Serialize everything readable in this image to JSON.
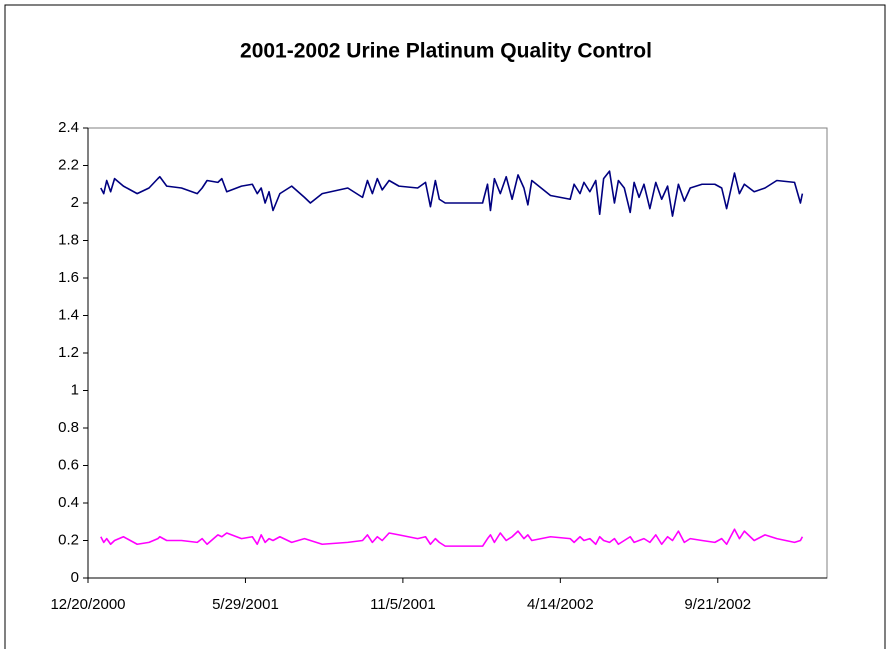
{
  "chart_data": {
    "type": "line",
    "title": "2001-2002 Urine Platinum Quality Control",
    "x": [
      "1/2/2001",
      "1/5/2001",
      "1/8/2001",
      "1/12/2001",
      "1/16/2001",
      "1/25/2001",
      "2/8/2001",
      "2/20/2001",
      "3/1/2001",
      "3/3/2001",
      "3/10/2001",
      "3/25/2001",
      "4/10/2001",
      "4/15/2001",
      "4/20/2001",
      "5/1/2001",
      "5/5/2001",
      "5/10/2001",
      "5/25/2001",
      "6/5/2001",
      "6/10/2001",
      "6/14/2001",
      "6/18/2001",
      "6/22/2001",
      "6/26/2001",
      "7/3/2001",
      "7/15/2001",
      "7/28/2001",
      "8/3/2001",
      "8/15/2001",
      "9/10/2001",
      "9/25/2001",
      "9/30/2001",
      "10/5/2001",
      "10/10/2001",
      "10/15/2001",
      "10/22/2001",
      "11/1/2001",
      "11/20/2001",
      "11/28/2001",
      "12/3/2001",
      "12/8/2001",
      "12/12/2001",
      "12/18/2001",
      "1/25/2002",
      "1/30/2002",
      "2/2/2002",
      "2/6/2002",
      "2/12/2002",
      "2/18/2002",
      "2/24/2002",
      "3/2/2002",
      "3/8/2002",
      "3/12/2002",
      "3/16/2002",
      "4/4/2002",
      "4/24/2002",
      "4/28/2002",
      "5/4/2002",
      "5/8/2002",
      "5/14/2002",
      "5/20/2002",
      "5/24/2002",
      "5/28/2002",
      "6/3/2002",
      "6/8/2002",
      "6/12/2002",
      "6/18/2002",
      "6/24/2002",
      "6/28/2002",
      "7/3/2002",
      "7/8/2002",
      "7/14/2002",
      "7/20/2002",
      "7/26/2002",
      "8/1/2002",
      "8/6/2002",
      "8/12/2002",
      "8/18/2002",
      "8/24/2002",
      "9/5/2002",
      "9/18/2002",
      "9/25/2002",
      "9/30/2002",
      "10/8/2002",
      "10/13/2002",
      "10/18/2002",
      "10/28/2002",
      "11/8/2002",
      "11/20/2002",
      "12/8/2002",
      "12/14/2002",
      "12/16/2002"
    ],
    "series": [
      {
        "color": "#000080",
        "values": [
          2.08,
          2.05,
          2.12,
          2.06,
          2.13,
          2.09,
          2.05,
          2.08,
          2.13,
          2.14,
          2.09,
          2.08,
          2.05,
          2.08,
          2.12,
          2.11,
          2.13,
          2.06,
          2.09,
          2.1,
          2.05,
          2.08,
          2.0,
          2.06,
          1.96,
          2.05,
          2.09,
          2.03,
          2.0,
          2.05,
          2.08,
          2.03,
          2.12,
          2.05,
          2.13,
          2.07,
          2.12,
          2.09,
          2.08,
          2.11,
          1.98,
          2.12,
          2.02,
          2.0,
          2.0,
          2.1,
          1.96,
          2.13,
          2.05,
          2.14,
          2.02,
          2.15,
          2.08,
          1.99,
          2.12,
          2.04,
          2.02,
          2.1,
          2.05,
          2.11,
          2.06,
          2.12,
          1.94,
          2.13,
          2.17,
          2.0,
          2.12,
          2.08,
          1.95,
          2.11,
          2.03,
          2.1,
          1.97,
          2.11,
          2.02,
          2.09,
          1.93,
          2.1,
          2.01,
          2.08,
          2.1,
          2.1,
          2.08,
          1.97,
          2.16,
          2.05,
          2.1,
          2.06,
          2.08,
          2.12,
          2.11,
          2.0,
          2.05
        ]
      },
      {
        "color": "#ff00ff",
        "values": [
          0.22,
          0.19,
          0.21,
          0.18,
          0.2,
          0.22,
          0.18,
          0.19,
          0.21,
          0.22,
          0.2,
          0.2,
          0.19,
          0.21,
          0.18,
          0.23,
          0.22,
          0.24,
          0.21,
          0.22,
          0.18,
          0.23,
          0.19,
          0.21,
          0.2,
          0.22,
          0.19,
          0.21,
          0.2,
          0.18,
          0.19,
          0.2,
          0.23,
          0.19,
          0.22,
          0.2,
          0.24,
          0.23,
          0.21,
          0.22,
          0.18,
          0.21,
          0.19,
          0.17,
          0.17,
          0.21,
          0.23,
          0.19,
          0.24,
          0.2,
          0.22,
          0.25,
          0.21,
          0.23,
          0.2,
          0.22,
          0.21,
          0.19,
          0.22,
          0.2,
          0.21,
          0.18,
          0.22,
          0.2,
          0.19,
          0.21,
          0.18,
          0.2,
          0.22,
          0.19,
          0.2,
          0.21,
          0.19,
          0.23,
          0.18,
          0.22,
          0.2,
          0.25,
          0.19,
          0.21,
          0.2,
          0.19,
          0.21,
          0.18,
          0.26,
          0.21,
          0.25,
          0.2,
          0.23,
          0.21,
          0.19,
          0.2,
          0.22
        ]
      }
    ],
    "xlim": [
      "12/20/2000",
      "1/10/2003"
    ],
    "xticks": [
      "12/20/2000",
      "5/29/2001",
      "11/5/2001",
      "4/14/2002",
      "9/21/2002"
    ],
    "ylim": [
      0,
      2.4
    ],
    "yticks": [
      0,
      0.2,
      0.4,
      0.6,
      0.8,
      1,
      1.2,
      1.4,
      1.6,
      1.8,
      2,
      2.2,
      2.4
    ]
  }
}
